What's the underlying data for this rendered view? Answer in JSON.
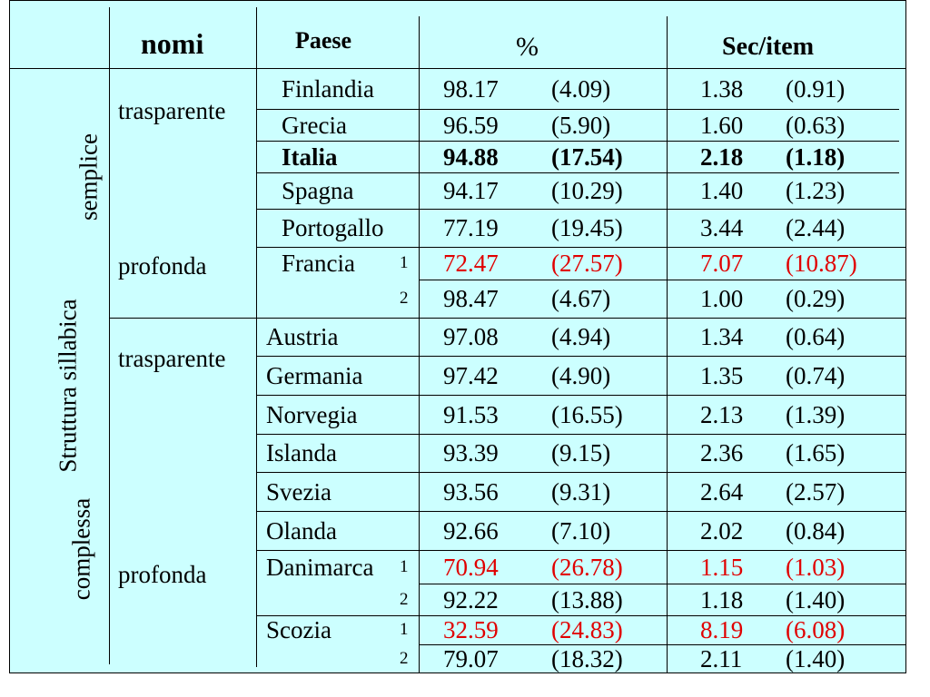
{
  "header": {
    "nomi": "nomi",
    "paese": "Paese",
    "percent": "%",
    "sec": "Sec/item"
  },
  "row_label": "Struttura sillabica",
  "sections": [
    {
      "name": "semplice",
      "groups": [
        {
          "name": "trasparente",
          "rows": [
            {
              "country": "Finlandia",
              "pct": "98.17",
              "pct_sd": "(4.09)",
              "sec": "1.38",
              "sec_sd": "(0.91)"
            },
            {
              "country": "Grecia",
              "pct": "96.59",
              "pct_sd": "(5.90)",
              "sec": "1.60",
              "sec_sd": "(0.63)"
            },
            {
              "country": "Italia",
              "pct": "94.88",
              "pct_sd": "(17.54)",
              "sec": "2.18",
              "sec_sd": "(1.18)",
              "style": "bold"
            }
          ]
        },
        {
          "name": "profonda",
          "rows": [
            {
              "country": "Spagna",
              "pct": "94.17",
              "pct_sd": "(10.29)",
              "sec": "1.40",
              "sec_sd": "(1.23)"
            },
            {
              "country": "Portogallo",
              "pct": "77.19",
              "pct_sd": "(19.45)",
              "sec": "3.44",
              "sec_sd": "(2.44)"
            },
            {
              "country": "Francia",
              "index": 1,
              "pct": "72.47",
              "pct_sd": "(27.57)",
              "sec": "7.07",
              "sec_sd": "(10.87)",
              "style": "red"
            },
            {
              "country": null,
              "index": 2,
              "pct": "98.47",
              "pct_sd": "(4.67)",
              "sec": "1.00",
              "sec_sd": "(0.29)"
            }
          ]
        }
      ]
    },
    {
      "name": "complessa",
      "groups": [
        {
          "name": "trasparente",
          "rows": [
            {
              "country": "Austria",
              "pct": "97.08",
              "pct_sd": "(4.94)",
              "sec": "1.34",
              "sec_sd": "(0.64)"
            },
            {
              "country": "Germania",
              "pct": "97.42",
              "pct_sd": "(4.90)",
              "sec": "1.35",
              "sec_sd": "(0.74)"
            }
          ]
        },
        {
          "name": "profonda",
          "rows": [
            {
              "country": "Norvegia",
              "pct": "91.53",
              "pct_sd": "(16.55)",
              "sec": "2.13",
              "sec_sd": "(1.39)"
            },
            {
              "country": "Islanda",
              "pct": "93.39",
              "pct_sd": "(9.15)",
              "sec": "2.36",
              "sec_sd": "(1.65)"
            },
            {
              "country": "Svezia",
              "pct": "93.56",
              "pct_sd": "(9.31)",
              "sec": "2.64",
              "sec_sd": "(2.57)"
            },
            {
              "country": "Olanda",
              "pct": "92.66",
              "pct_sd": "(7.10)",
              "sec": "2.02",
              "sec_sd": "(0.84)"
            },
            {
              "country": "Danimarca",
              "index": 1,
              "pct": "70.94",
              "pct_sd": "(26.78)",
              "sec": "1.15",
              "sec_sd": "(1.03)",
              "style": "red"
            },
            {
              "country": null,
              "index": 2,
              "pct": "92.22",
              "pct_sd": "(13.88)",
              "sec": "1.18",
              "sec_sd": "(1.40)"
            },
            {
              "country": "Scozia",
              "index": 1,
              "pct": "32.59",
              "pct_sd": "(24.83)",
              "sec": "8.19",
              "sec_sd": "(6.08)",
              "style": "red"
            },
            {
              "country": null,
              "index": 2,
              "pct": "79.07",
              "pct_sd": "(18.32)",
              "sec": "2.11",
              "sec_sd": "(1.40)"
            }
          ]
        }
      ]
    }
  ]
}
